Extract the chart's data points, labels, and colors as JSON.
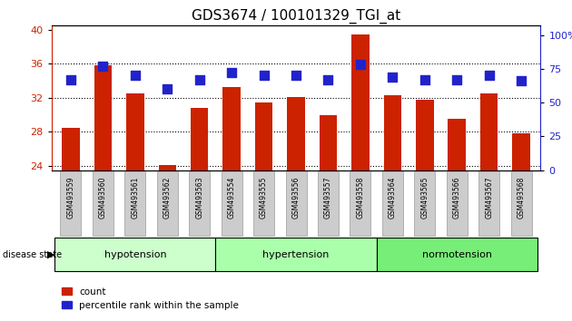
{
  "title": "GDS3674 / 100101329_TGI_at",
  "samples": [
    "GSM493559",
    "GSM493560",
    "GSM493561",
    "GSM493562",
    "GSM493563",
    "GSM493554",
    "GSM493555",
    "GSM493556",
    "GSM493557",
    "GSM493558",
    "GSM493564",
    "GSM493565",
    "GSM493566",
    "GSM493567",
    "GSM493568"
  ],
  "counts": [
    28.5,
    35.8,
    32.5,
    24.1,
    30.8,
    33.3,
    31.5,
    32.1,
    30.0,
    39.5,
    32.3,
    31.8,
    29.5,
    32.5,
    27.8
  ],
  "percentiles": [
    67,
    77,
    70,
    60,
    67,
    72,
    70,
    70,
    67,
    78,
    69,
    67,
    67,
    70,
    66
  ],
  "ylim_left": [
    23.5,
    40.5
  ],
  "ylim_right": [
    0,
    107
  ],
  "yticks_left": [
    24,
    28,
    32,
    36,
    40
  ],
  "yticks_right": [
    0,
    25,
    50,
    75,
    100
  ],
  "bar_color": "#cc2200",
  "dot_color": "#2222cc",
  "groups": [
    {
      "label": "hypotension",
      "start": 0,
      "end": 4,
      "color": "#ccffcc"
    },
    {
      "label": "hypertension",
      "start": 5,
      "end": 9,
      "color": "#aaffaa"
    },
    {
      "label": "normotension",
      "start": 10,
      "end": 14,
      "color": "#77ee77"
    }
  ],
  "legend_count_label": "count",
  "legend_percentile_label": "percentile rank within the sample",
  "disease_state_label": "disease state",
  "bar_width": 0.55,
  "dot_size": 45,
  "background_color": "#ffffff",
  "tick_label_bg": "#cccccc"
}
